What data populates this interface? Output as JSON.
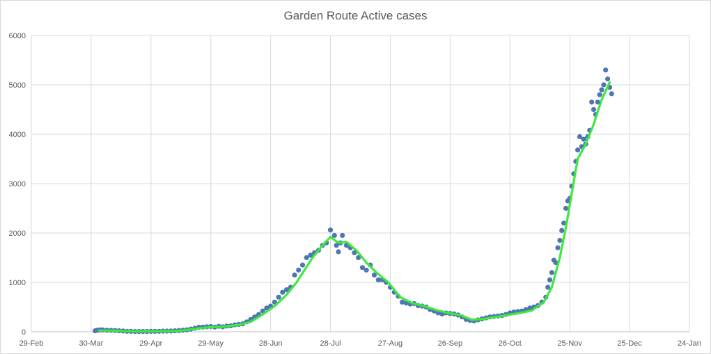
{
  "chart_data": {
    "type": "scatter",
    "title": "Garden Route Active cases",
    "xlabel": "",
    "ylabel": "",
    "ylim": [
      0,
      6000
    ],
    "yticks": [
      0,
      1000,
      2000,
      3000,
      4000,
      5000,
      6000
    ],
    "xlim": [
      "2020-02-29",
      "2021-01-24"
    ],
    "xticks": [
      "29-Feb",
      "30-Mar",
      "29-Apr",
      "29-May",
      "28-Jun",
      "28-Jul",
      "27-Aug",
      "26-Sep",
      "26-Oct",
      "25-Nov",
      "25-Dec",
      "24-Jan"
    ],
    "grid": true,
    "legend": "none",
    "series": [
      {
        "kind": "scatter",
        "color": "#4f76b3",
        "points": [
          [
            "2020-04-01",
            20
          ],
          [
            "2020-04-02",
            30
          ],
          [
            "2020-04-03",
            35
          ],
          [
            "2020-04-04",
            38
          ],
          [
            "2020-04-05",
            35
          ],
          [
            "2020-04-07",
            30
          ],
          [
            "2020-04-09",
            28
          ],
          [
            "2020-04-11",
            25
          ],
          [
            "2020-04-13",
            20
          ],
          [
            "2020-04-15",
            15
          ],
          [
            "2020-04-17",
            10
          ],
          [
            "2020-04-19",
            8
          ],
          [
            "2020-04-21",
            6
          ],
          [
            "2020-04-23",
            5
          ],
          [
            "2020-04-25",
            5
          ],
          [
            "2020-04-27",
            6
          ],
          [
            "2020-04-29",
            8
          ],
          [
            "2020-05-01",
            8
          ],
          [
            "2020-05-03",
            10
          ],
          [
            "2020-05-05",
            12
          ],
          [
            "2020-05-07",
            14
          ],
          [
            "2020-05-09",
            16
          ],
          [
            "2020-05-11",
            20
          ],
          [
            "2020-05-13",
            25
          ],
          [
            "2020-05-15",
            30
          ],
          [
            "2020-05-17",
            40
          ],
          [
            "2020-05-19",
            55
          ],
          [
            "2020-05-21",
            70
          ],
          [
            "2020-05-23",
            90
          ],
          [
            "2020-05-25",
            95
          ],
          [
            "2020-05-27",
            100
          ],
          [
            "2020-05-29",
            105
          ],
          [
            "2020-05-31",
            95
          ],
          [
            "2020-06-02",
            110
          ],
          [
            "2020-06-04",
            100
          ],
          [
            "2020-06-06",
            115
          ],
          [
            "2020-06-08",
            120
          ],
          [
            "2020-06-10",
            140
          ],
          [
            "2020-06-12",
            150
          ],
          [
            "2020-06-14",
            160
          ],
          [
            "2020-06-16",
            200
          ],
          [
            "2020-06-18",
            250
          ],
          [
            "2020-06-20",
            300
          ],
          [
            "2020-06-22",
            350
          ],
          [
            "2020-06-24",
            420
          ],
          [
            "2020-06-26",
            480
          ],
          [
            "2020-06-28",
            520
          ],
          [
            "2020-06-30",
            600
          ],
          [
            "2020-07-02",
            700
          ],
          [
            "2020-07-04",
            800
          ],
          [
            "2020-07-06",
            850
          ],
          [
            "2020-07-08",
            900
          ],
          [
            "2020-07-10",
            1150
          ],
          [
            "2020-07-12",
            1250
          ],
          [
            "2020-07-14",
            1350
          ],
          [
            "2020-07-16",
            1500
          ],
          [
            "2020-07-18",
            1550
          ],
          [
            "2020-07-20",
            1600
          ],
          [
            "2020-07-22",
            1650
          ],
          [
            "2020-07-24",
            1750
          ],
          [
            "2020-07-26",
            1800
          ],
          [
            "2020-07-28",
            2060
          ],
          [
            "2020-07-30",
            1950
          ],
          [
            "2020-07-31",
            1750
          ],
          [
            "2020-08-01",
            1620
          ],
          [
            "2020-08-02",
            1800
          ],
          [
            "2020-08-03",
            1950
          ],
          [
            "2020-08-05",
            1750
          ],
          [
            "2020-08-07",
            1700
          ],
          [
            "2020-08-09",
            1600
          ],
          [
            "2020-08-11",
            1500
          ],
          [
            "2020-08-13",
            1300
          ],
          [
            "2020-08-15",
            1250
          ],
          [
            "2020-08-17",
            1350
          ],
          [
            "2020-08-19",
            1150
          ],
          [
            "2020-08-21",
            1050
          ],
          [
            "2020-08-23",
            1050
          ],
          [
            "2020-08-25",
            1000
          ],
          [
            "2020-08-27",
            900
          ],
          [
            "2020-08-29",
            800
          ],
          [
            "2020-08-31",
            720
          ],
          [
            "2020-09-02",
            600
          ],
          [
            "2020-09-04",
            580
          ],
          [
            "2020-09-06",
            560
          ],
          [
            "2020-09-08",
            570
          ],
          [
            "2020-09-10",
            530
          ],
          [
            "2020-09-12",
            520
          ],
          [
            "2020-09-14",
            500
          ],
          [
            "2020-09-16",
            450
          ],
          [
            "2020-09-18",
            420
          ],
          [
            "2020-09-20",
            380
          ],
          [
            "2020-09-22",
            360
          ],
          [
            "2020-09-24",
            380
          ],
          [
            "2020-09-26",
            370
          ],
          [
            "2020-09-28",
            360
          ],
          [
            "2020-09-30",
            340
          ],
          [
            "2020-10-02",
            300
          ],
          [
            "2020-10-04",
            250
          ],
          [
            "2020-10-06",
            230
          ],
          [
            "2020-10-08",
            220
          ],
          [
            "2020-10-10",
            240
          ],
          [
            "2020-10-12",
            260
          ],
          [
            "2020-10-14",
            280
          ],
          [
            "2020-10-16",
            300
          ],
          [
            "2020-10-18",
            310
          ],
          [
            "2020-10-20",
            320
          ],
          [
            "2020-10-22",
            330
          ],
          [
            "2020-10-24",
            350
          ],
          [
            "2020-10-26",
            380
          ],
          [
            "2020-10-28",
            400
          ],
          [
            "2020-10-30",
            410
          ],
          [
            "2020-11-01",
            420
          ],
          [
            "2020-11-03",
            450
          ],
          [
            "2020-11-05",
            480
          ],
          [
            "2020-11-07",
            500
          ],
          [
            "2020-11-09",
            530
          ],
          [
            "2020-11-11",
            600
          ],
          [
            "2020-11-13",
            700
          ],
          [
            "2020-11-14",
            900
          ],
          [
            "2020-11-15",
            1050
          ],
          [
            "2020-11-16",
            1200
          ],
          [
            "2020-11-17",
            1450
          ],
          [
            "2020-11-18",
            1400
          ],
          [
            "2020-11-19",
            1700
          ],
          [
            "2020-11-20",
            1850
          ],
          [
            "2020-11-21",
            2050
          ],
          [
            "2020-11-22",
            2200
          ],
          [
            "2020-11-23",
            2500
          ],
          [
            "2020-11-24",
            2650
          ],
          [
            "2020-11-25",
            2700
          ],
          [
            "2020-11-26",
            2950
          ],
          [
            "2020-11-27",
            3200
          ],
          [
            "2020-11-28",
            3450
          ],
          [
            "2020-11-29",
            3680
          ],
          [
            "2020-11-30",
            3950
          ],
          [
            "2020-12-01",
            3750
          ],
          [
            "2020-12-02",
            3900
          ],
          [
            "2020-12-03",
            3800
          ],
          [
            "2020-12-04",
            3950
          ],
          [
            "2020-12-05",
            4080
          ],
          [
            "2020-12-06",
            4650
          ],
          [
            "2020-12-07",
            4500
          ],
          [
            "2020-12-08",
            4400
          ],
          [
            "2020-12-09",
            4650
          ],
          [
            "2020-12-10",
            4800
          ],
          [
            "2020-12-11",
            4900
          ],
          [
            "2020-12-12",
            5000
          ],
          [
            "2020-12-13",
            5300
          ],
          [
            "2020-12-14",
            5120
          ],
          [
            "2020-12-15",
            4950
          ],
          [
            "2020-12-16",
            4820
          ]
        ]
      },
      {
        "kind": "line",
        "color": "#3ee83e",
        "points": [
          [
            "2020-04-03",
            25
          ],
          [
            "2020-04-10",
            22
          ],
          [
            "2020-04-17",
            12
          ],
          [
            "2020-04-24",
            6
          ],
          [
            "2020-05-01",
            8
          ],
          [
            "2020-05-08",
            12
          ],
          [
            "2020-05-15",
            25
          ],
          [
            "2020-05-22",
            65
          ],
          [
            "2020-05-29",
            95
          ],
          [
            "2020-06-05",
            105
          ],
          [
            "2020-06-12",
            140
          ],
          [
            "2020-06-18",
            200
          ],
          [
            "2020-06-24",
            350
          ],
          [
            "2020-06-30",
            520
          ],
          [
            "2020-07-06",
            750
          ],
          [
            "2020-07-11",
            1000
          ],
          [
            "2020-07-15",
            1250
          ],
          [
            "2020-07-19",
            1500
          ],
          [
            "2020-07-24",
            1750
          ],
          [
            "2020-07-28",
            1920
          ],
          [
            "2020-08-01",
            1800
          ],
          [
            "2020-08-05",
            1820
          ],
          [
            "2020-08-10",
            1650
          ],
          [
            "2020-08-15",
            1400
          ],
          [
            "2020-08-20",
            1200
          ],
          [
            "2020-08-26",
            1000
          ],
          [
            "2020-09-01",
            700
          ],
          [
            "2020-09-07",
            580
          ],
          [
            "2020-09-13",
            520
          ],
          [
            "2020-09-19",
            440
          ],
          [
            "2020-09-25",
            380
          ],
          [
            "2020-10-01",
            340
          ],
          [
            "2020-10-07",
            240
          ],
          [
            "2020-10-13",
            260
          ],
          [
            "2020-10-19",
            300
          ],
          [
            "2020-10-25",
            340
          ],
          [
            "2020-10-31",
            380
          ],
          [
            "2020-11-06",
            430
          ],
          [
            "2020-11-12",
            600
          ],
          [
            "2020-11-16",
            900
          ],
          [
            "2020-11-20",
            1500
          ],
          [
            "2020-11-23",
            2100
          ],
          [
            "2020-11-26",
            2800
          ],
          [
            "2020-11-29",
            3500
          ],
          [
            "2020-12-03",
            3800
          ],
          [
            "2020-12-07",
            4200
          ],
          [
            "2020-12-11",
            4700
          ],
          [
            "2020-12-15",
            5050
          ]
        ]
      }
    ]
  }
}
